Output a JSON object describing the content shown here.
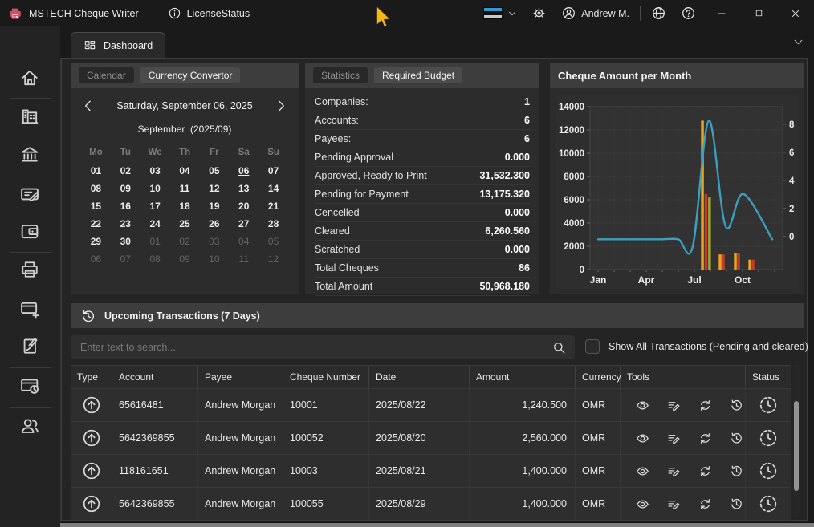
{
  "titlebar": {
    "app_title": "MSTECH Cheque Writer",
    "license_status": "LicenseStatus",
    "user_name": "Andrew M."
  },
  "tab": {
    "label": "Dashboard"
  },
  "sidebar": {
    "items": [
      "home",
      "companies",
      "bank",
      "cheque-editor",
      "wallet",
      "print",
      "new-cheque",
      "sign-cheque",
      "scheduled-cheques",
      "payees"
    ]
  },
  "calendar": {
    "tab_calendar": "Calendar",
    "tab_currency": "Currency Convertor",
    "date_label": "Saturday, September 06, 2025",
    "month_name": "September",
    "month_code": "(2025/09)",
    "weekdays": [
      "Mo",
      "Tu",
      "We",
      "Th",
      "Fr",
      "Sa",
      "Su"
    ],
    "days": [
      {
        "t": "01"
      },
      {
        "t": "02"
      },
      {
        "t": "03"
      },
      {
        "t": "04"
      },
      {
        "t": "05"
      },
      {
        "t": "06",
        "today": true
      },
      {
        "t": "07"
      },
      {
        "t": "08"
      },
      {
        "t": "09"
      },
      {
        "t": "10"
      },
      {
        "t": "11"
      },
      {
        "t": "12"
      },
      {
        "t": "13"
      },
      {
        "t": "14"
      },
      {
        "t": "15"
      },
      {
        "t": "16"
      },
      {
        "t": "17"
      },
      {
        "t": "18"
      },
      {
        "t": "19"
      },
      {
        "t": "20"
      },
      {
        "t": "21"
      },
      {
        "t": "22"
      },
      {
        "t": "23"
      },
      {
        "t": "24"
      },
      {
        "t": "25"
      },
      {
        "t": "26"
      },
      {
        "t": "27"
      },
      {
        "t": "28"
      },
      {
        "t": "29"
      },
      {
        "t": "30"
      },
      {
        "t": "01",
        "muted": true
      },
      {
        "t": "02",
        "muted": true
      },
      {
        "t": "03",
        "muted": true
      },
      {
        "t": "04",
        "muted": true
      },
      {
        "t": "05",
        "muted": true
      },
      {
        "t": "06",
        "muted": true
      },
      {
        "t": "07",
        "muted": true
      },
      {
        "t": "08",
        "muted": true
      },
      {
        "t": "09",
        "muted": true
      },
      {
        "t": "10",
        "muted": true
      },
      {
        "t": "11",
        "muted": true
      },
      {
        "t": "12",
        "muted": true
      }
    ]
  },
  "statistics": {
    "tab_statistics": "Statistics",
    "tab_required_budget": "Required Budget",
    "rows": [
      {
        "label": "Companies:",
        "value": "1"
      },
      {
        "label": "Accounts:",
        "value": "6"
      },
      {
        "label": "Payees:",
        "value": "6"
      },
      {
        "label": "Pending Approval",
        "value": "0.000"
      },
      {
        "label": "Approved, Ready to Print",
        "value": "31,532.300"
      },
      {
        "label": "Pending for Payment",
        "value": "13,175.320"
      },
      {
        "label": "Cencelled",
        "value": "0.000"
      },
      {
        "label": "Cleared",
        "value": "6,260.560"
      },
      {
        "label": "Scratched",
        "value": "0.000"
      },
      {
        "label": "Total Cheques",
        "value": "86"
      },
      {
        "label": "Total Amount",
        "value": "50,968.180"
      }
    ]
  },
  "chart": {
    "title": "Cheque Amount per Month"
  },
  "chart_data": {
    "type": "line+bar",
    "title": "Cheque Amount per Month",
    "months": [
      "Jan",
      "Feb",
      "Mar",
      "Apr",
      "May",
      "Jun",
      "Jul",
      "Aug",
      "Sep",
      "Oct",
      "Nov",
      "Dec"
    ],
    "x_tick_labels": [
      "Jan",
      "Apr",
      "Jul",
      "Oct"
    ],
    "x_tick_month_index": [
      0,
      3,
      6,
      9
    ],
    "left_axis": {
      "min": 0,
      "max": 14000,
      "tick_step": 2000
    },
    "right_axis": {
      "min": -2.35,
      "max": 9.25,
      "ticks": [
        8,
        6,
        4,
        2,
        0
      ]
    },
    "line_series": {
      "name": "cheque-amount-line",
      "color": "#3D9FBE",
      "points": [
        {
          "m": 0,
          "v": 2600
        },
        {
          "m": 1,
          "v": 2600
        },
        {
          "m": 2,
          "v": 2600
        },
        {
          "m": 3,
          "v": 2600
        },
        {
          "m": 4,
          "v": 2600
        },
        {
          "m": 5,
          "v": 2600
        },
        {
          "m": 5.9,
          "v": 2000
        },
        {
          "m": 6.9,
          "v": 12800
        },
        {
          "m": 7.95,
          "v": 3700
        },
        {
          "m": 9.05,
          "v": 6500
        },
        {
          "m": 10.85,
          "v": 2600
        }
      ]
    },
    "bar_series": [
      {
        "m": 6.5,
        "v": 12800,
        "color": "#E8A41C"
      },
      {
        "m": 6.72,
        "v": 6500,
        "color": "#C23B2B"
      },
      {
        "m": 6.94,
        "v": 6200,
        "color": "#9BA634"
      },
      {
        "m": 7.6,
        "v": 1300,
        "color": "#E8A41C"
      },
      {
        "m": 7.8,
        "v": 1300,
        "color": "#C23B2B"
      },
      {
        "m": 8.55,
        "v": 1400,
        "color": "#E8A41C"
      },
      {
        "m": 8.75,
        "v": 1400,
        "color": "#C23B2B"
      },
      {
        "m": 9.45,
        "v": 850,
        "color": "#E8A41C"
      },
      {
        "m": 9.65,
        "v": 850,
        "color": "#C23B2B"
      }
    ]
  },
  "transactions": {
    "header": "Upcoming Transactions (7 Days)",
    "search_placeholder": "Enter text to search...",
    "show_all_label": "Show All Transactions (Pending and cleared)",
    "columns": [
      "Type",
      "Account",
      "Payee",
      "Cheque Number",
      "Date",
      "Amount",
      "Currency",
      "Tools",
      "Status"
    ],
    "rows": [
      {
        "account": "65616481",
        "payee": "Andrew Morgan",
        "cheque": "10001",
        "date": "2025/08/22",
        "amount": "1,240.500",
        "currency": "OMR"
      },
      {
        "account": "5642369855",
        "payee": "Andrew Morgan",
        "cheque": "100052",
        "date": "2025/08/20",
        "amount": "2,560.000",
        "currency": "OMR"
      },
      {
        "account": "118161651",
        "payee": "Andrew Morgan",
        "cheque": "10003",
        "date": "2025/08/21",
        "amount": "1,400.000",
        "currency": "OMR"
      },
      {
        "account": "5642369855",
        "payee": "Andrew Morgan",
        "cheque": "100055",
        "date": "2025/08/29",
        "amount": "1,400.000",
        "currency": "OMR"
      }
    ]
  }
}
